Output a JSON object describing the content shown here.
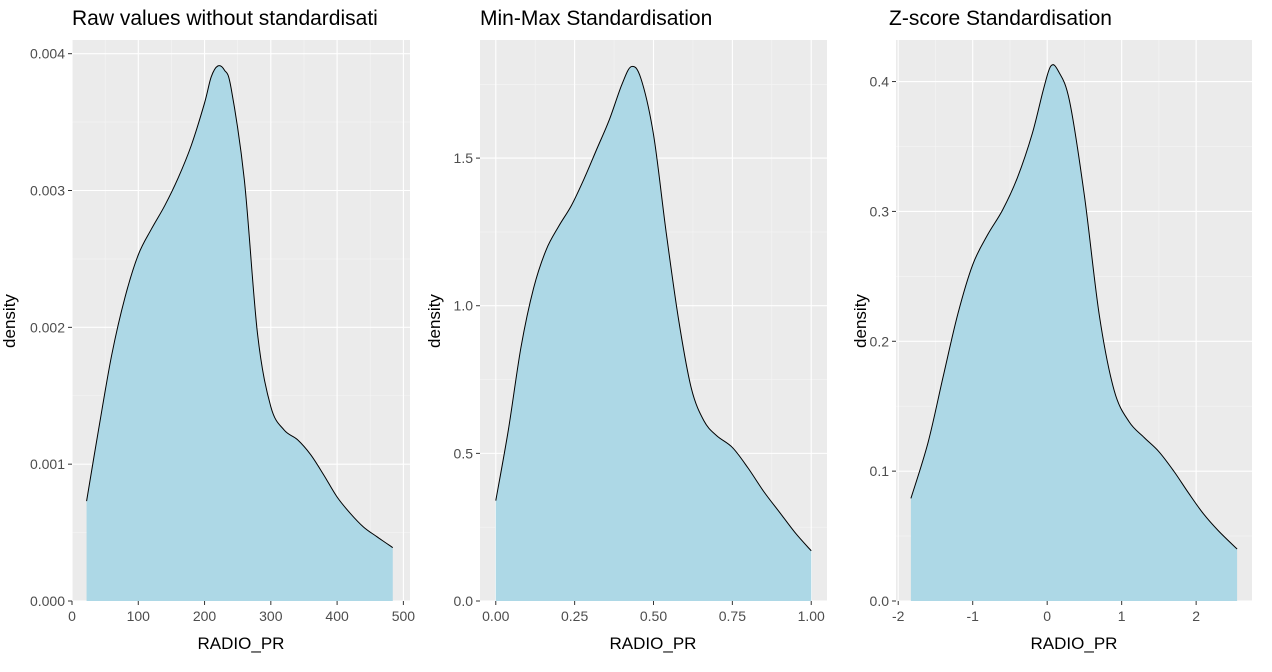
{
  "colors": {
    "panel": "#ebebeb",
    "grid_major": "#ffffff",
    "fill": "#add8e6",
    "line": "#000000",
    "tick_text": "#4d4d4d"
  },
  "chart_data": [
    {
      "type": "area",
      "title": "Raw values without standardisati",
      "xlabel": "RADIO_PR",
      "ylabel": "density",
      "grid": true,
      "xlim": [
        0,
        510
      ],
      "ylim": [
        0,
        0.0041
      ],
      "xticks": [
        0,
        100,
        200,
        300,
        400,
        500
      ],
      "xtick_labels": [
        "0",
        "100",
        "200",
        "300",
        "400",
        "500"
      ],
      "yticks": [
        0,
        0.001,
        0.002,
        0.003,
        0.004
      ],
      "ytick_labels": [
        "0.000",
        "0.001",
        "0.002",
        "0.003",
        "0.004"
      ],
      "x": [
        22,
        40,
        60,
        80,
        100,
        120,
        140,
        160,
        180,
        200,
        210,
        220,
        230,
        240,
        260,
        280,
        300,
        320,
        340,
        360,
        380,
        400,
        420,
        440,
        460,
        484
      ],
      "y": [
        0.00073,
        0.00125,
        0.0018,
        0.00222,
        0.00253,
        0.00272,
        0.00289,
        0.00309,
        0.00333,
        0.00364,
        0.00383,
        0.00391,
        0.00388,
        0.00375,
        0.00308,
        0.00195,
        0.00142,
        0.00125,
        0.00118,
        0.00107,
        0.00092,
        0.00076,
        0.00064,
        0.00054,
        0.00047,
        0.00039
      ]
    },
    {
      "type": "area",
      "title": "Min-Max Standardisation",
      "xlabel": "RADIO_PR",
      "ylabel": "density",
      "grid": true,
      "xlim": [
        -0.05,
        1.05
      ],
      "ylim": [
        0,
        1.9
      ],
      "xticks": [
        0,
        0.25,
        0.5,
        0.75,
        1
      ],
      "xtick_labels": [
        "0.00",
        "0.25",
        "0.50",
        "0.75",
        "1.00"
      ],
      "yticks": [
        0,
        0.5,
        1,
        1.5
      ],
      "ytick_labels": [
        "0.0",
        "0.5",
        "1.0",
        "1.5"
      ],
      "x": [
        0,
        0.04,
        0.08,
        0.12,
        0.16,
        0.2,
        0.24,
        0.28,
        0.32,
        0.36,
        0.4,
        0.43,
        0.46,
        0.5,
        0.54,
        0.58,
        0.62,
        0.66,
        0.7,
        0.75,
        0.8,
        0.85,
        0.9,
        0.95,
        1
      ],
      "y": [
        0.34,
        0.58,
        0.86,
        1.06,
        1.19,
        1.27,
        1.34,
        1.43,
        1.53,
        1.63,
        1.75,
        1.81,
        1.77,
        1.58,
        1.25,
        0.95,
        0.72,
        0.61,
        0.56,
        0.52,
        0.45,
        0.37,
        0.3,
        0.23,
        0.17
      ]
    },
    {
      "type": "area",
      "title": "Z-score Standardisation",
      "xlabel": "RADIO_PR",
      "ylabel": "density",
      "grid": true,
      "xlim": [
        -2.03,
        2.75
      ],
      "ylim": [
        0,
        0.432
      ],
      "xticks": [
        -2,
        -1,
        0,
        1,
        2
      ],
      "xtick_labels": [
        "-2",
        "-1",
        "0",
        "1",
        "2"
      ],
      "yticks": [
        0,
        0.1,
        0.2,
        0.3,
        0.4
      ],
      "ytick_labels": [
        "0.0",
        "0.1",
        "0.2",
        "0.3",
        "0.4"
      ],
      "x": [
        -1.83,
        -1.6,
        -1.4,
        -1.2,
        -1.0,
        -0.8,
        -0.6,
        -0.4,
        -0.2,
        -0.05,
        0.05,
        0.15,
        0.3,
        0.5,
        0.7,
        0.9,
        1.1,
        1.3,
        1.5,
        1.7,
        1.9,
        2.1,
        2.3,
        2.55
      ],
      "y": [
        0.079,
        0.122,
        0.172,
        0.221,
        0.259,
        0.282,
        0.301,
        0.326,
        0.36,
        0.394,
        0.412,
        0.408,
        0.385,
        0.312,
        0.22,
        0.162,
        0.138,
        0.126,
        0.115,
        0.1,
        0.083,
        0.067,
        0.054,
        0.04
      ]
    }
  ]
}
